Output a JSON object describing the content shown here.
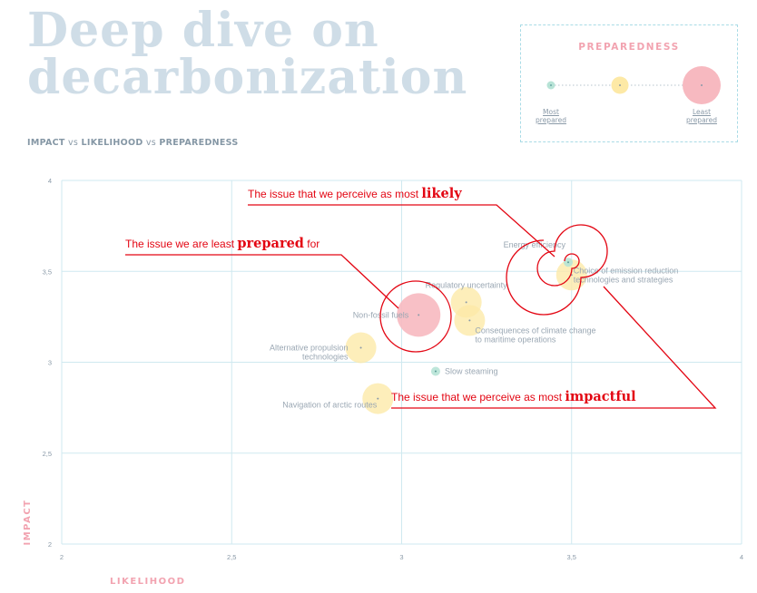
{
  "header": {
    "title_line1": "Deep dive on",
    "title_line2": "decarbonization",
    "subtitle_a": "IMPACT",
    "subtitle_vs1": " vs ",
    "subtitle_b": "LIKELIHOOD",
    "subtitle_vs2": " vs ",
    "subtitle_c": "PREPAREDNESS"
  },
  "legend": {
    "title": "PREPAREDNESS",
    "most_line1": "Most",
    "most_line2": "prepared",
    "least_line1": "Least",
    "least_line2": "prepared",
    "colors": {
      "most": "#b7e3d6",
      "mid": "#fde9a6",
      "least": "#f7b9c0"
    }
  },
  "annotations": {
    "likely_pre": "The issue that we perceive as most ",
    "likely_em": "likely",
    "prepared_pre": "The issue we are least ",
    "prepared_em": "prepared",
    "prepared_post": " for",
    "impact_pre": "The issue that we perceive as most ",
    "impact_em": "impactful",
    "color": "#e30613"
  },
  "chart_data": {
    "type": "scatter",
    "title": "",
    "xlabel": "LIKELIHOOD",
    "ylabel": "IMPACT",
    "xlim": [
      2,
      4
    ],
    "ylim": [
      2,
      4
    ],
    "xticks": [
      "2",
      "2,5",
      "3",
      "3,5",
      "4"
    ],
    "yticks": [
      "2",
      "2,5",
      "3",
      "3,5",
      "4"
    ],
    "grid": true,
    "size_variable": "PREPAREDNESS",
    "points": [
      {
        "label": "Energy efficiency",
        "x": 3.49,
        "y": 3.55,
        "preparedness": "most"
      },
      {
        "label": "Choice of emission reduction technologies and strategies",
        "x": 3.5,
        "y": 3.48,
        "preparedness": "mid"
      },
      {
        "label": "Regulatory uncertainty",
        "x": 3.19,
        "y": 3.33,
        "preparedness": "mid"
      },
      {
        "label": "Non-fossil fuels",
        "x": 3.05,
        "y": 3.26,
        "preparedness": "least"
      },
      {
        "label": "Consequences of climate change to maritime operations",
        "x": 3.2,
        "y": 3.23,
        "preparedness": "mid"
      },
      {
        "label": "Alternative propulsion technologies",
        "x": 2.88,
        "y": 3.08,
        "preparedness": "mid"
      },
      {
        "label": "Slow steaming",
        "x": 3.1,
        "y": 2.95,
        "preparedness": "most"
      },
      {
        "label": "Navigation of arctic routes",
        "x": 2.93,
        "y": 2.8,
        "preparedness": "mid"
      }
    ]
  }
}
